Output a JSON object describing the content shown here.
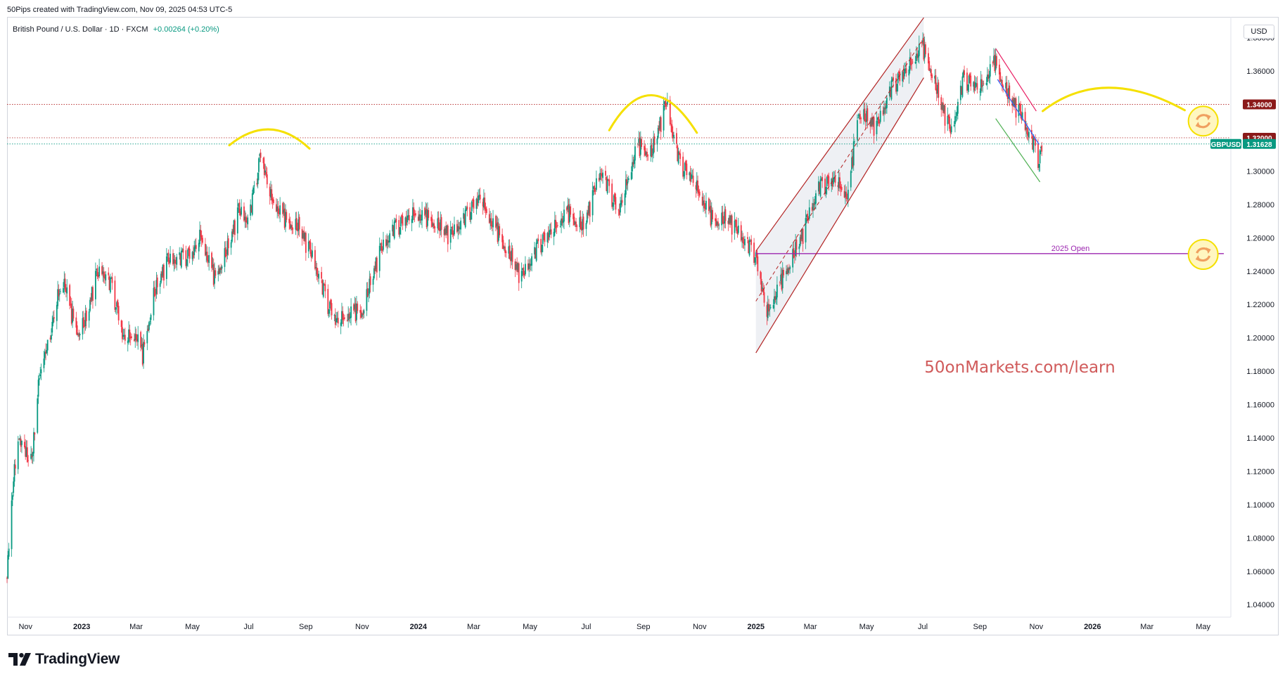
{
  "header": {
    "attribution": "50Pips created with TradingView.com, Nov 09, 2025 04:53 UTC-5",
    "symbol": "British Pound / U.S. Dollar · 1D · FXCM",
    "change": "+0.00264 (+0.20%)",
    "currency": "USD"
  },
  "brand": {
    "name": "TradingView",
    "logo_icon": "tradingview-logo-icon"
  },
  "watermark": "50onMarkets.com/learn",
  "colors": {
    "up": "#089981",
    "down": "#f23645",
    "resistance": "#8b1a1a",
    "price": "#089981",
    "open_line": "#9c27b0",
    "arc": "#f5e000"
  },
  "chart_data": {
    "type": "candlestick",
    "symbol": "GBPUSD",
    "x_ticks": [
      "Nov",
      "2023",
      "Mar",
      "May",
      "Jul",
      "Sep",
      "Nov",
      "2024",
      "Mar",
      "May",
      "Jul",
      "Sep",
      "Nov",
      "2025",
      "Mar",
      "May",
      "Jul",
      "Sep",
      "Nov",
      "2026",
      "Mar",
      "May"
    ],
    "y_ticks": [
      "1.38000",
      "1.36000",
      "1.34000",
      "1.32000",
      "1.30000",
      "1.28000",
      "1.26000",
      "1.24000",
      "1.22000",
      "1.20000",
      "1.18000",
      "1.16000",
      "1.14000",
      "1.12000",
      "1.10000",
      "1.08000",
      "1.06000",
      "1.04000"
    ],
    "ylim": [
      1.0325,
      1.3925
    ],
    "xlim": [
      "2022-10-12",
      "2026-05-31"
    ],
    "path": [
      [
        "2022-10-12",
        1.055
      ],
      [
        "2022-10-18",
        1.11
      ],
      [
        "2022-10-25",
        1.14
      ],
      [
        "2022-11-01",
        1.13
      ],
      [
        "2022-11-08",
        1.125
      ],
      [
        "2022-11-15",
        1.17
      ],
      [
        "2022-11-22",
        1.19
      ],
      [
        "2022-11-29",
        1.205
      ],
      [
        "2022-12-06",
        1.225
      ],
      [
        "2022-12-13",
        1.235
      ],
      [
        "2022-12-20",
        1.215
      ],
      [
        "2022-12-28",
        1.203
      ],
      [
        "2023-01-06",
        1.21
      ],
      [
        "2023-01-16",
        1.235
      ],
      [
        "2023-01-23",
        1.24
      ],
      [
        "2023-02-03",
        1.23
      ],
      [
        "2023-02-15",
        1.2
      ],
      [
        "2023-03-01",
        1.202
      ],
      [
        "2023-03-08",
        1.189
      ],
      [
        "2023-03-20",
        1.225
      ],
      [
        "2023-04-04",
        1.245
      ],
      [
        "2023-05-01",
        1.25
      ],
      [
        "2023-05-10",
        1.262
      ],
      [
        "2023-05-25",
        1.235
      ],
      [
        "2023-06-10",
        1.255
      ],
      [
        "2023-06-20",
        1.275
      ],
      [
        "2023-07-01",
        1.27
      ],
      [
        "2023-07-14",
        1.31
      ],
      [
        "2023-07-25",
        1.285
      ],
      [
        "2023-08-10",
        1.27
      ],
      [
        "2023-08-25",
        1.265
      ],
      [
        "2023-09-10",
        1.245
      ],
      [
        "2023-09-25",
        1.22
      ],
      [
        "2023-10-04",
        1.21
      ],
      [
        "2023-10-20",
        1.215
      ],
      [
        "2023-11-01",
        1.215
      ],
      [
        "2023-11-20",
        1.25
      ],
      [
        "2023-12-05",
        1.265
      ],
      [
        "2023-12-28",
        1.275
      ],
      [
        "2024-01-15",
        1.27
      ],
      [
        "2024-02-05",
        1.26
      ],
      [
        "2024-03-08",
        1.285
      ],
      [
        "2024-03-20",
        1.27
      ],
      [
        "2024-04-22",
        1.235
      ],
      [
        "2024-05-10",
        1.255
      ],
      [
        "2024-06-10",
        1.275
      ],
      [
        "2024-06-28",
        1.265
      ],
      [
        "2024-07-17",
        1.3
      ],
      [
        "2024-08-05",
        1.275
      ],
      [
        "2024-08-25",
        1.315
      ],
      [
        "2024-09-10",
        1.31
      ],
      [
        "2024-09-26",
        1.34
      ],
      [
        "2024-10-10",
        1.305
      ],
      [
        "2024-10-25",
        1.295
      ],
      [
        "2024-11-15",
        1.27
      ],
      [
        "2024-12-02",
        1.27
      ],
      [
        "2024-12-31",
        1.25
      ],
      [
        "2025-01-13",
        1.215
      ],
      [
        "2025-02-03",
        1.24
      ],
      [
        "2025-02-20",
        1.26
      ],
      [
        "2025-03-10",
        1.29
      ],
      [
        "2025-03-28",
        1.295
      ],
      [
        "2025-04-11",
        1.285
      ],
      [
        "2025-04-22",
        1.335
      ],
      [
        "2025-05-12",
        1.325
      ],
      [
        "2025-05-28",
        1.35
      ],
      [
        "2025-06-12",
        1.36
      ],
      [
        "2025-06-30",
        1.375
      ],
      [
        "2025-07-10",
        1.36
      ],
      [
        "2025-07-20",
        1.34
      ],
      [
        "2025-08-01",
        1.322
      ],
      [
        "2025-08-14",
        1.355
      ],
      [
        "2025-09-01",
        1.35
      ],
      [
        "2025-09-17",
        1.365
      ],
      [
        "2025-10-01",
        1.345
      ],
      [
        "2025-10-14",
        1.334
      ],
      [
        "2025-10-28",
        1.317
      ],
      [
        "2025-11-04",
        1.306
      ],
      [
        "2025-11-08",
        1.3163
      ]
    ],
    "horizontal_levels": [
      {
        "price": 1.34,
        "label": "1.34000"
      },
      {
        "price": 1.32,
        "label": "1.32000"
      }
    ],
    "current_price": {
      "price": 1.31628,
      "label": "1.31628",
      "symbol": "GBPUSD"
    },
    "open_2025": {
      "price": 1.2505,
      "label": "2025 Open",
      "start": "2025-01-01",
      "end": "2026-06-10"
    },
    "channel": {
      "upper": [
        [
          "2025-01-01",
          1.252
        ],
        [
          "2025-07-02",
          1.392
        ]
      ],
      "lower": [
        [
          "2025-01-01",
          1.191
        ],
        [
          "2025-07-02",
          1.356
        ]
      ],
      "mid": [
        [
          "2025-01-01",
          1.222
        ],
        [
          "2025-07-02",
          1.38
        ]
      ]
    },
    "falling_wedge": {
      "upper": [
        [
          "2025-09-18",
          1.3735
        ],
        [
          "2025-11-01",
          1.336
        ]
      ],
      "lower": [
        [
          "2025-09-18",
          1.3315
        ],
        [
          "2025-11-05",
          1.2935
        ]
      ],
      "trend": [
        [
          "2025-09-20",
          1.355
        ],
        [
          "2025-11-04",
          1.316
        ]
      ]
    },
    "arcs": [
      {
        "start": [
          "2023-06-10",
          1.3155
        ],
        "peak": [
          "2023-07-24",
          1.325
        ],
        "end": [
          "2023-09-05",
          1.3135
        ]
      },
      {
        "start": [
          "2024-07-26",
          1.3245
        ],
        "peak": [
          "2024-09-10",
          1.3455
        ],
        "end": [
          "2024-10-29",
          1.323
        ]
      },
      {
        "start": [
          "2025-11-08",
          1.336
        ],
        "peak": [
          "2026-01-18",
          1.35
        ],
        "end": [
          "2026-04-11",
          1.3365
        ]
      }
    ],
    "markers": [
      {
        "icon": "refresh-icon",
        "date": "2026-05-01",
        "price": 1.33
      },
      {
        "icon": "refresh-icon",
        "date": "2026-05-01",
        "price": 1.25
      }
    ]
  }
}
